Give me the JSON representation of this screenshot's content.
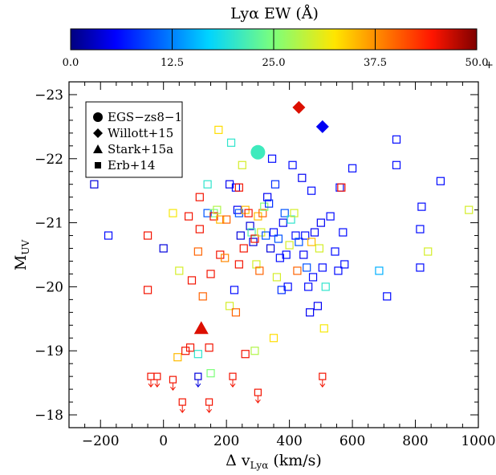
{
  "colorbar": {
    "title": "Lyα EW (Å)",
    "range": [
      0,
      50
    ],
    "ticks": [
      "0.0",
      "12.5",
      "25.0",
      "37.5",
      "50.0"
    ],
    "overflow_mark": "+"
  },
  "chart_data": {
    "type": "scatter",
    "xlabel": "Δ v",
    "xlabel_sub": "Lyα",
    "xlabel_unit": " (km/s)",
    "ylabel": "M",
    "ylabel_sub": "UV",
    "xlim": [
      -300,
      1000
    ],
    "ylim": [
      -17.8,
      -23.2
    ],
    "x_ticks": [
      "−200",
      "0",
      "200",
      "400",
      "600",
      "800",
      "1000"
    ],
    "x_tick_values": [
      -200,
      0,
      200,
      400,
      600,
      800,
      1000
    ],
    "y_ticks": [
      "−23",
      "−22",
      "−21",
      "−20",
      "−19",
      "−18"
    ],
    "y_tick_values": [
      -23,
      -22,
      -21,
      -20,
      -19,
      -18
    ],
    "legend": {
      "placement": "top-left",
      "entries": [
        {
          "label": "EGS−zs8−1",
          "marker": "circle"
        },
        {
          "label": "Willott+15",
          "marker": "diamond"
        },
        {
          "label": "Stark+15a",
          "marker": "triangle"
        },
        {
          "label": "Erb+14",
          "marker": "square"
        }
      ]
    },
    "series": [
      {
        "name": "EGS−zs8−1",
        "marker": "circle",
        "points": [
          {
            "x": 300,
            "y": -22.1,
            "ew": 21
          }
        ]
      },
      {
        "name": "Willott+15",
        "marker": "diamond",
        "points": [
          {
            "x": 430,
            "y": -22.8,
            "ew": 46
          },
          {
            "x": 505,
            "y": -22.5,
            "ew": 5
          }
        ]
      },
      {
        "name": "Stark+15a",
        "marker": "triangle",
        "points": [
          {
            "x": 120,
            "y": -19.35,
            "ew": 46
          }
        ]
      },
      {
        "name": "Erb+14",
        "marker": "square",
        "points": [
          {
            "x": -220,
            "y": -21.6,
            "ew": 4
          },
          {
            "x": -175,
            "y": -20.8,
            "ew": 6
          },
          {
            "x": -50,
            "y": -20.8,
            "ew": 45
          },
          {
            "x": -50,
            "y": -19.95,
            "ew": 45
          },
          {
            "x": 0,
            "y": -20.6,
            "ew": 4
          },
          {
            "x": 30,
            "y": -21.15,
            "ew": 32
          },
          {
            "x": 50,
            "y": -20.25,
            "ew": 30
          },
          {
            "x": 80,
            "y": -21.1,
            "ew": 45
          },
          {
            "x": 90,
            "y": -20.1,
            "ew": 45
          },
          {
            "x": 110,
            "y": -20.55,
            "ew": 40
          },
          {
            "x": 115,
            "y": -21.4,
            "ew": 45
          },
          {
            "x": 115,
            "y": -20.9,
            "ew": 45
          },
          {
            "x": 125,
            "y": -19.85,
            "ew": 40
          },
          {
            "x": 140,
            "y": -21.15,
            "ew": 10
          },
          {
            "x": 140,
            "y": -21.6,
            "ew": 20
          },
          {
            "x": 150,
            "y": -20.2,
            "ew": 45
          },
          {
            "x": 160,
            "y": -21.15,
            "ew": 25
          },
          {
            "x": 160,
            "y": -21.1,
            "ew": 45
          },
          {
            "x": 170,
            "y": -21.2,
            "ew": 28
          },
          {
            "x": 175,
            "y": -22.45,
            "ew": 33
          },
          {
            "x": 180,
            "y": -21.05,
            "ew": 35
          },
          {
            "x": 180,
            "y": -20.5,
            "ew": 45
          },
          {
            "x": 195,
            "y": -20.45,
            "ew": 38
          },
          {
            "x": 200,
            "y": -21.05,
            "ew": 40
          },
          {
            "x": 210,
            "y": -21.6,
            "ew": 5
          },
          {
            "x": 215,
            "y": -22.25,
            "ew": 20
          },
          {
            "x": 225,
            "y": -19.95,
            "ew": 6
          },
          {
            "x": 230,
            "y": -21.55,
            "ew": 6
          },
          {
            "x": 235,
            "y": -21.2,
            "ew": 5
          },
          {
            "x": 240,
            "y": -21.55,
            "ew": 45
          },
          {
            "x": 240,
            "y": -21.15,
            "ew": 10
          },
          {
            "x": 240,
            "y": -20.35,
            "ew": 45
          },
          {
            "x": 245,
            "y": -20.8,
            "ew": 4
          },
          {
            "x": 250,
            "y": -21.9,
            "ew": 30
          },
          {
            "x": 255,
            "y": -20.6,
            "ew": 45
          },
          {
            "x": 260,
            "y": -21.2,
            "ew": 35
          },
          {
            "x": 270,
            "y": -21.15,
            "ew": 45
          },
          {
            "x": 275,
            "y": -20.95,
            "ew": 4
          },
          {
            "x": 280,
            "y": -20.85,
            "ew": 22
          },
          {
            "x": 285,
            "y": -20.7,
            "ew": 4
          },
          {
            "x": 290,
            "y": -20.75,
            "ew": 45
          },
          {
            "x": 295,
            "y": -20.35,
            "ew": 30
          },
          {
            "x": 300,
            "y": -21.1,
            "ew": 35
          },
          {
            "x": 305,
            "y": -20.25,
            "ew": 40
          },
          {
            "x": 310,
            "y": -20.85,
            "ew": 30
          },
          {
            "x": 315,
            "y": -21.15,
            "ew": 40
          },
          {
            "x": 320,
            "y": -21.25,
            "ew": 25
          },
          {
            "x": 325,
            "y": -20.8,
            "ew": 10
          },
          {
            "x": 330,
            "y": -21.4,
            "ew": 5
          },
          {
            "x": 335,
            "y": -21.3,
            "ew": 8
          },
          {
            "x": 340,
            "y": -20.6,
            "ew": 4
          },
          {
            "x": 345,
            "y": -22.0,
            "ew": 6
          },
          {
            "x": 350,
            "y": -20.85,
            "ew": 6
          },
          {
            "x": 355,
            "y": -21.6,
            "ew": 8
          },
          {
            "x": 360,
            "y": -20.15,
            "ew": 30
          },
          {
            "x": 365,
            "y": -20.75,
            "ew": 10
          },
          {
            "x": 370,
            "y": -20.45,
            "ew": 6
          },
          {
            "x": 375,
            "y": -19.95,
            "ew": 8
          },
          {
            "x": 380,
            "y": -21.0,
            "ew": 5
          },
          {
            "x": 385,
            "y": -21.15,
            "ew": 10
          },
          {
            "x": 390,
            "y": -20.5,
            "ew": 6
          },
          {
            "x": 395,
            "y": -20.0,
            "ew": 6
          },
          {
            "x": 400,
            "y": -20.65,
            "ew": 30
          },
          {
            "x": 405,
            "y": -21.05,
            "ew": 20
          },
          {
            "x": 410,
            "y": -21.9,
            "ew": 6
          },
          {
            "x": 415,
            "y": -21.15,
            "ew": 30
          },
          {
            "x": 420,
            "y": -20.8,
            "ew": 6
          },
          {
            "x": 425,
            "y": -20.25,
            "ew": 40
          },
          {
            "x": 430,
            "y": -20.7,
            "ew": 10
          },
          {
            "x": 440,
            "y": -21.7,
            "ew": 5
          },
          {
            "x": 445,
            "y": -20.5,
            "ew": 5
          },
          {
            "x": 450,
            "y": -20.8,
            "ew": 6
          },
          {
            "x": 455,
            "y": -20.3,
            "ew": 10
          },
          {
            "x": 460,
            "y": -20.0,
            "ew": 6
          },
          {
            "x": 465,
            "y": -19.6,
            "ew": 5
          },
          {
            "x": 470,
            "y": -21.5,
            "ew": 6
          },
          {
            "x": 470,
            "y": -20.7,
            "ew": 35
          },
          {
            "x": 475,
            "y": -20.15,
            "ew": 6
          },
          {
            "x": 480,
            "y": -20.85,
            "ew": 5
          },
          {
            "x": 490,
            "y": -19.7,
            "ew": 5
          },
          {
            "x": 495,
            "y": -20.6,
            "ew": 30
          },
          {
            "x": 500,
            "y": -21.0,
            "ew": 5
          },
          {
            "x": 505,
            "y": -20.3,
            "ew": 6
          },
          {
            "x": 510,
            "y": -19.35,
            "ew": 32
          },
          {
            "x": 515,
            "y": -20.0,
            "ew": 20
          },
          {
            "x": 530,
            "y": -21.1,
            "ew": 6
          },
          {
            "x": 545,
            "y": -20.55,
            "ew": 6
          },
          {
            "x": 555,
            "y": -20.25,
            "ew": 6
          },
          {
            "x": 560,
            "y": -21.55,
            "ew": 6
          },
          {
            "x": 565,
            "y": -21.55,
            "ew": 45
          },
          {
            "x": 570,
            "y": -20.85,
            "ew": 6
          },
          {
            "x": 575,
            "y": -20.35,
            "ew": 6
          },
          {
            "x": 600,
            "y": -21.85,
            "ew": 6
          },
          {
            "x": 685,
            "y": -20.25,
            "ew": 15
          },
          {
            "x": 710,
            "y": -19.85,
            "ew": 6
          },
          {
            "x": 740,
            "y": -22.3,
            "ew": 6
          },
          {
            "x": 740,
            "y": -21.9,
            "ew": 6
          },
          {
            "x": 815,
            "y": -20.9,
            "ew": 6
          },
          {
            "x": 815,
            "y": -20.3,
            "ew": 6
          },
          {
            "x": 820,
            "y": -21.25,
            "ew": 6
          },
          {
            "x": 840,
            "y": -20.55,
            "ew": 30
          },
          {
            "x": 880,
            "y": -21.65,
            "ew": 6
          },
          {
            "x": 970,
            "y": -21.2,
            "ew": 30
          },
          {
            "x": 350,
            "y": -19.2,
            "ew": 33
          },
          {
            "x": 290,
            "y": -19.0,
            "ew": 28
          },
          {
            "x": 150,
            "y": -18.65,
            "ew": 25
          },
          {
            "x": 45,
            "y": -18.9,
            "ew": 35
          },
          {
            "x": 70,
            "y": -19.0,
            "ew": 45
          },
          {
            "x": 85,
            "y": -19.05,
            "ew": 45
          },
          {
            "x": 110,
            "y": -18.95,
            "ew": 20
          },
          {
            "x": 145,
            "y": -19.05,
            "ew": 45
          },
          {
            "x": 210,
            "y": -19.7,
            "ew": 30
          },
          {
            "x": 230,
            "y": -19.6,
            "ew": 40
          },
          {
            "x": 260,
            "y": -18.95,
            "ew": 45
          }
        ]
      },
      {
        "name": "Erb+14 (upper limits)",
        "marker": "square-arrow",
        "points": [
          {
            "x": -40,
            "y": -18.6,
            "ew": 45
          },
          {
            "x": -20,
            "y": -18.6,
            "ew": 45
          },
          {
            "x": 30,
            "y": -18.55,
            "ew": 45
          },
          {
            "x": 60,
            "y": -18.2,
            "ew": 45
          },
          {
            "x": 110,
            "y": -18.6,
            "ew": 4
          },
          {
            "x": 145,
            "y": -18.2,
            "ew": 45
          },
          {
            "x": 220,
            "y": -18.6,
            "ew": 45
          },
          {
            "x": 300,
            "y": -18.35,
            "ew": 45
          },
          {
            "x": 505,
            "y": -18.6,
            "ew": 45
          }
        ]
      }
    ]
  }
}
